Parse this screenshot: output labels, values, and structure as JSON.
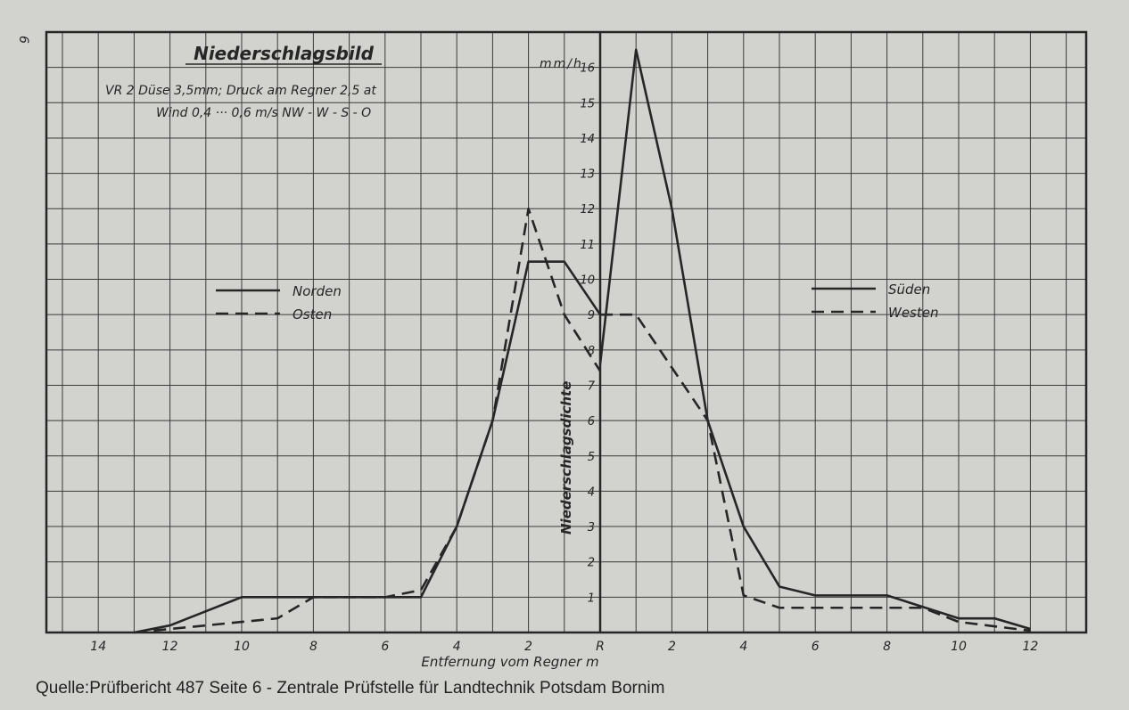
{
  "page_number": "6",
  "caption": "Quelle:Prüfbericht 487  Seite 6 - Zentrale Prüfstelle für Landtechnik Potsdam Bornim",
  "colors": {
    "background": "#d2d3cf",
    "ink": "#262626",
    "grid": "#3a3a3a"
  },
  "chart_data": {
    "type": "line",
    "title": "Niederschlagsbild",
    "subtitle_lines": [
      "VR 2  Düse 3,5mm; Druck am Regner 2,5 at",
      "Wind 0,4 ··· 0,6 m/s    NW - W - S - O"
    ],
    "xlabel": "Entfernung vom Regner   m",
    "ylabel": "Niederschlagsdichte",
    "yunit": "mm/h",
    "grid": true,
    "x_tick_labels_left": [
      "14",
      "12",
      "10",
      "8",
      "6",
      "4",
      "2"
    ],
    "x_center_label": "R",
    "x_tick_labels_right": [
      "2",
      "4",
      "6",
      "8",
      "10",
      "12"
    ],
    "y_tick_labels": [
      "1",
      "2",
      "3",
      "4",
      "5",
      "6",
      "7",
      "8",
      "9",
      "10",
      "11",
      "12",
      "13",
      "14",
      "15",
      "16"
    ],
    "ylim": [
      0,
      17
    ],
    "left_panel": {
      "xlim": [
        15.5,
        0
      ],
      "legend_position": "middle-left",
      "series": [
        {
          "name": "Norden",
          "style": "solid",
          "points": [
            [
              13,
              0
            ],
            [
              12,
              0.2
            ],
            [
              10,
              1.0
            ],
            [
              8,
              1.0
            ],
            [
              6,
              1.0
            ],
            [
              5,
              1.0
            ],
            [
              4,
              3.0
            ],
            [
              3,
              6.0
            ],
            [
              2,
              10.5
            ],
            [
              1,
              10.5
            ],
            [
              0,
              9.0
            ]
          ]
        },
        {
          "name": "Osten",
          "style": "dashed",
          "points": [
            [
              13,
              0
            ],
            [
              12,
              0.1
            ],
            [
              10,
              0.3
            ],
            [
              9,
              0.4
            ],
            [
              8,
              1.0
            ],
            [
              6,
              1.0
            ],
            [
              5,
              1.2
            ],
            [
              4,
              3.0
            ],
            [
              3,
              6.0
            ],
            [
              2,
              12.0
            ],
            [
              1,
              9.0
            ],
            [
              0,
              7.4
            ]
          ]
        }
      ]
    },
    "right_panel": {
      "xlim": [
        0,
        13
      ],
      "legend_position": "middle-right",
      "series": [
        {
          "name": "Süden",
          "style": "solid",
          "points": [
            [
              0,
              7.6
            ],
            [
              1,
              16.5
            ],
            [
              2,
              12.0
            ],
            [
              3,
              6.0
            ],
            [
              4,
              3.0
            ],
            [
              5,
              1.3
            ],
            [
              6,
              1.05
            ],
            [
              8,
              1.05
            ],
            [
              10,
              0.4
            ],
            [
              11,
              0.4
            ],
            [
              12,
              0.1
            ]
          ]
        },
        {
          "name": "Westen",
          "style": "dashed",
          "points": [
            [
              0,
              9.0
            ],
            [
              1,
              9.0
            ],
            [
              3,
              6.0
            ],
            [
              4,
              1.05
            ],
            [
              5,
              0.7
            ],
            [
              8,
              0.7
            ],
            [
              9,
              0.7
            ],
            [
              10,
              0.3
            ],
            [
              12,
              0.05
            ]
          ]
        }
      ]
    }
  }
}
